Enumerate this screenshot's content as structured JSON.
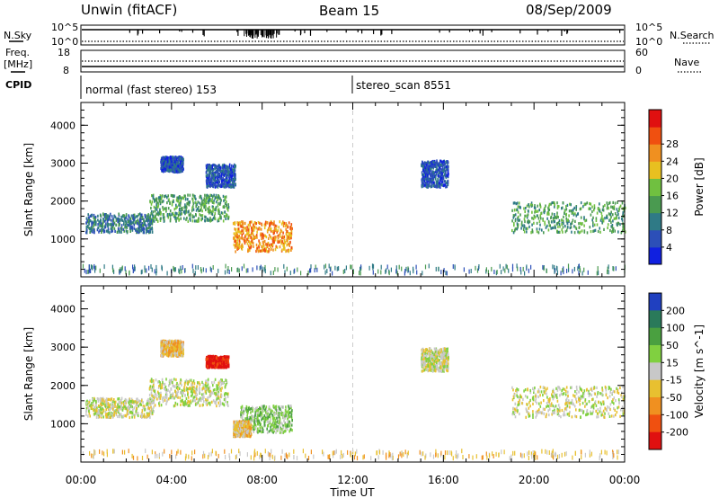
{
  "header": {
    "station": "Unwin (fitACF)",
    "beam": "Beam 15",
    "date": "08/Sep/2009"
  },
  "top_panels": {
    "nsky_label": "N.Sky",
    "nsky_ticks": [
      "10^5",
      "10^0"
    ],
    "nsearch_label": "N.Search",
    "nsearch_ticks": [
      "10^5",
      "10^0"
    ],
    "freq_label": "Freq.",
    "freq_unit": "[MHz]",
    "freq_ticks": [
      "18",
      "8"
    ],
    "nave_label": "Nave",
    "nave_ticks": [
      "60",
      "0"
    ],
    "cpid_label": "CPID",
    "cpid_segments": [
      {
        "label": "normal (fast stereo) 153",
        "start_h": 0
      },
      {
        "label": "stereo_scan 8551",
        "start_h": 12
      }
    ]
  },
  "chart_data": [
    {
      "type": "heatmap",
      "name": "power",
      "ylabel": "Slant Range [km]",
      "xlabel": "Time UT",
      "x_range_hours": [
        0,
        24
      ],
      "x_ticks": [
        "00:00",
        "04:00",
        "08:00",
        "12:00",
        "16:00",
        "20:00",
        "00:00"
      ],
      "ylim": [
        0,
        4600
      ],
      "y_ticks": [
        1000,
        2000,
        3000,
        4000
      ],
      "colorbar": {
        "label": "Power [dB]",
        "ticks": [
          "4",
          "8",
          "12",
          "16",
          "20",
          "24",
          "28"
        ],
        "colors": [
          "#1020e0",
          "#2c4fb8",
          "#2f7a86",
          "#4a9a50",
          "#70c040",
          "#e8c020",
          "#f09020",
          "#f05010",
          "#e01010"
        ]
      },
      "regions": [
        {
          "t0": 0.2,
          "t1": 3.2,
          "r0": 1200,
          "r1": 1700,
          "level": 2
        },
        {
          "t0": 3.0,
          "t1": 6.5,
          "r0": 1500,
          "r1": 2200,
          "level": 3
        },
        {
          "t0": 3.5,
          "t1": 4.5,
          "r0": 2800,
          "r1": 3200,
          "level": 1
        },
        {
          "t0": 5.5,
          "t1": 6.8,
          "r0": 2400,
          "r1": 3000,
          "level": 1
        },
        {
          "t0": 6.7,
          "t1": 9.3,
          "r0": 700,
          "r1": 1500,
          "level": 6
        },
        {
          "t0": 15.0,
          "t1": 16.2,
          "r0": 2400,
          "r1": 3100,
          "level": 1
        },
        {
          "t0": 19.0,
          "t1": 24.0,
          "r0": 1200,
          "r1": 2000,
          "level": 3
        },
        {
          "t0": 0.0,
          "t1": 24.0,
          "r0": 150,
          "r1": 350,
          "level": 2
        }
      ]
    },
    {
      "type": "heatmap",
      "name": "velocity",
      "ylabel": "Slant Range [km]",
      "xlabel": "Time UT",
      "x_range_hours": [
        0,
        24
      ],
      "x_ticks": [
        "00:00",
        "04:00",
        "08:00",
        "12:00",
        "16:00",
        "20:00",
        "00:00"
      ],
      "ylim": [
        0,
        4600
      ],
      "y_ticks": [
        1000,
        2000,
        3000,
        4000
      ],
      "colorbar": {
        "label": "Velocity [m s^-1]",
        "ticks": [
          "200",
          "100",
          "50",
          "15",
          "-15",
          "-50",
          "-100",
          "-200"
        ],
        "colors": [
          "#2040c0",
          "#2a7a5a",
          "#4aa040",
          "#80d040",
          "#c8c8c8",
          "#e8c030",
          "#f09020",
          "#f05010",
          "#e01010"
        ]
      },
      "regions": [
        {
          "t0": 0.2,
          "t1": 3.2,
          "r0": 1200,
          "r1": 1700,
          "level": 4
        },
        {
          "t0": 3.0,
          "t1": 6.5,
          "r0": 1500,
          "r1": 2200,
          "level": 4
        },
        {
          "t0": 3.5,
          "t1": 4.5,
          "r0": 2800,
          "r1": 3200,
          "level": 5
        },
        {
          "t0": 5.5,
          "t1": 6.5,
          "r0": 2500,
          "r1": 2800,
          "level": 8
        },
        {
          "t0": 7.0,
          "t1": 9.3,
          "r0": 800,
          "r1": 1500,
          "level": 3
        },
        {
          "t0": 6.7,
          "t1": 7.5,
          "r0": 700,
          "r1": 1100,
          "level": 5
        },
        {
          "t0": 15.0,
          "t1": 16.2,
          "r0": 2400,
          "r1": 3000,
          "level": 4
        },
        {
          "t0": 19.0,
          "t1": 24.0,
          "r0": 1200,
          "r1": 2000,
          "level": 4
        },
        {
          "t0": 0.0,
          "t1": 24.0,
          "r0": 150,
          "r1": 350,
          "level": 5
        }
      ]
    }
  ]
}
